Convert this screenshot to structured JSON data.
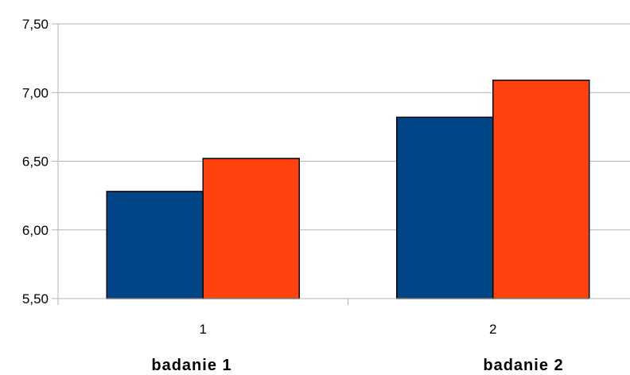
{
  "chart_data": {
    "type": "bar",
    "categories": [
      "1",
      "2"
    ],
    "series": [
      {
        "values": [
          6.28,
          6.82
        ],
        "color": "#004586"
      },
      {
        "values": [
          6.52,
          7.09
        ],
        "color": "#ff420e"
      }
    ],
    "yticks": [
      "5,50",
      "6,00",
      "6,50",
      "7,00",
      "7,50"
    ],
    "ytick_values": [
      5.5,
      6.0,
      6.5,
      7.0,
      7.5
    ],
    "ylim": [
      5.5,
      7.5
    ],
    "grid": true,
    "legend": "none",
    "group_captions": [
      "badanie 1",
      "badanie 2"
    ]
  }
}
